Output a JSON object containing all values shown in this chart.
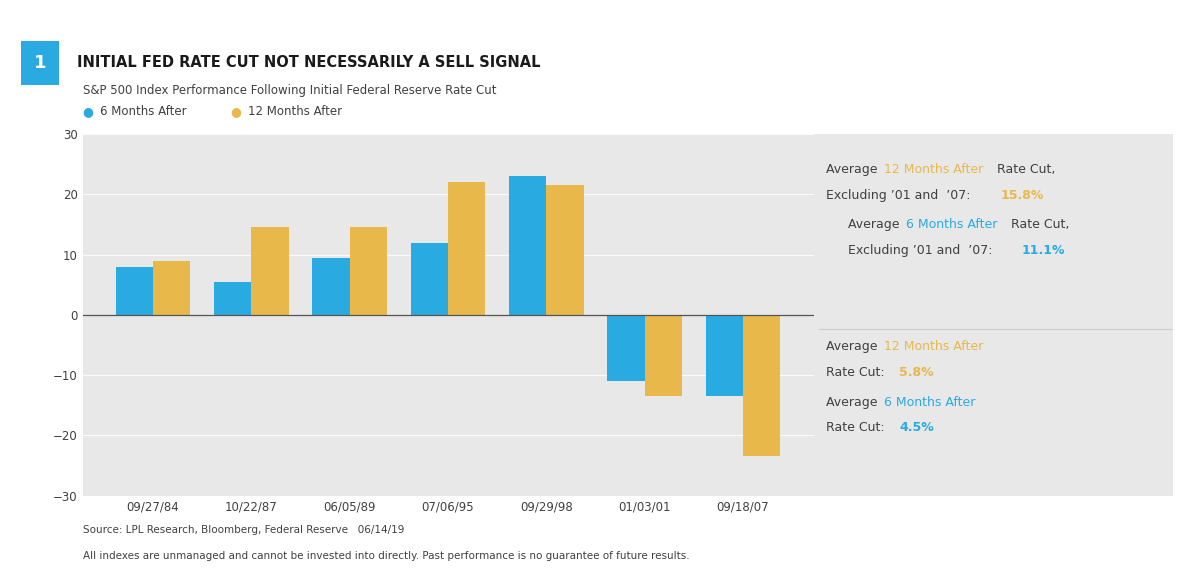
{
  "categories": [
    "09/27/84",
    "10/22/87",
    "06/05/89",
    "07/06/95",
    "09/29/98",
    "01/03/01",
    "09/18/07"
  ],
  "six_months": [
    8.0,
    5.5,
    9.5,
    12.0,
    23.0,
    -11.0,
    -13.5
  ],
  "twelve_months": [
    9.0,
    14.5,
    14.5,
    22.0,
    21.5,
    -13.5,
    -23.5
  ],
  "color_blue": "#29ABE2",
  "color_gold": "#E8B84B",
  "bg_color": "#E8E8E8",
  "title_text": "INITIAL FED RATE CUT NOT NECESSARILY A SELL SIGNAL",
  "subtitle": "S&P 500 Index Performance Following Initial Federal Reserve Rate Cut",
  "legend_6m": "6 Months After",
  "legend_12m": "12 Months After",
  "ylim": [
    -30,
    30
  ],
  "yticks": [
    -30,
    -20,
    -10,
    0,
    10,
    20,
    30
  ],
  "source_text": "Source: LPL Research, Bloomberg, Federal Reserve   06/14/19",
  "disclaimer_text": "All indexes are unmanaged and cannot be invested into directly. Past performance is no guarantee of future results.",
  "dark_text": "#404040",
  "title_color": "#1a1a1a"
}
